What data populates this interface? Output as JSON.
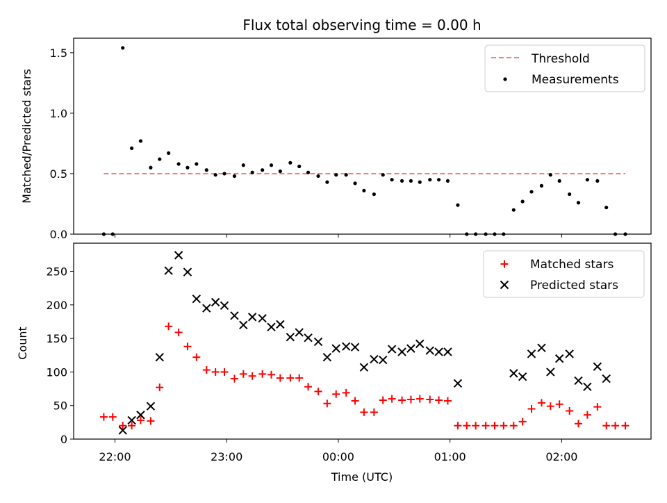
{
  "colors": {
    "threshold": "#f08080",
    "matched": "#ff0000",
    "predicted": "#000000",
    "measurements": "#000000",
    "axis": "#000000"
  },
  "chart_data": [
    {
      "type": "scatter",
      "title": "Flux total observing time = 0.00 h",
      "xlabel": "",
      "ylabel": "Matched/Predicted stars",
      "xlim": [
        21.63,
        26.8
      ],
      "ylim": [
        0,
        1.62
      ],
      "yticks": [
        0,
        0.5,
        1.0,
        1.5
      ],
      "ytick_labels": [
        "0.0",
        "0.5",
        "1.0",
        "1.5"
      ],
      "xticks": [
        22,
        23,
        24,
        25,
        26
      ],
      "legend_position": "top-right",
      "legend": [
        "Threshold",
        "Measurements"
      ],
      "threshold": {
        "name": "Threshold",
        "y": 0.5,
        "x_range": [
          21.9,
          26.57
        ]
      },
      "series": [
        {
          "name": "Measurements",
          "points": [
            [
              21.9,
              0.0
            ],
            [
              21.98,
              0.0
            ],
            [
              22.07,
              1.54
            ],
            [
              22.15,
              0.71
            ],
            [
              22.23,
              0.77
            ],
            [
              22.32,
              0.55
            ],
            [
              22.4,
              0.62
            ],
            [
              22.48,
              0.67
            ],
            [
              22.57,
              0.58
            ],
            [
              22.65,
              0.55
            ],
            [
              22.73,
              0.58
            ],
            [
              22.82,
              0.53
            ],
            [
              22.9,
              0.49
            ],
            [
              22.98,
              0.5
            ],
            [
              23.07,
              0.48
            ],
            [
              23.15,
              0.57
            ],
            [
              23.23,
              0.51
            ],
            [
              23.32,
              0.53
            ],
            [
              23.4,
              0.57
            ],
            [
              23.48,
              0.52
            ],
            [
              23.57,
              0.59
            ],
            [
              23.65,
              0.56
            ],
            [
              23.73,
              0.51
            ],
            [
              23.82,
              0.48
            ],
            [
              23.9,
              0.43
            ],
            [
              23.98,
              0.49
            ],
            [
              24.07,
              0.49
            ],
            [
              24.15,
              0.42
            ],
            [
              24.23,
              0.36
            ],
            [
              24.32,
              0.33
            ],
            [
              24.4,
              0.49
            ],
            [
              24.48,
              0.45
            ],
            [
              24.57,
              0.44
            ],
            [
              24.65,
              0.44
            ],
            [
              24.73,
              0.43
            ],
            [
              24.82,
              0.45
            ],
            [
              24.9,
              0.45
            ],
            [
              24.98,
              0.44
            ],
            [
              25.07,
              0.24
            ],
            [
              25.15,
              0.0
            ],
            [
              25.23,
              0.0
            ],
            [
              25.32,
              0.0
            ],
            [
              25.4,
              0.0
            ],
            [
              25.48,
              0.0
            ],
            [
              25.57,
              0.2
            ],
            [
              25.65,
              0.27
            ],
            [
              25.73,
              0.35
            ],
            [
              25.82,
              0.4
            ],
            [
              25.9,
              0.49
            ],
            [
              25.98,
              0.44
            ],
            [
              26.07,
              0.33
            ],
            [
              26.15,
              0.26
            ],
            [
              26.23,
              0.45
            ],
            [
              26.32,
              0.44
            ],
            [
              26.4,
              0.22
            ],
            [
              26.48,
              0.0
            ],
            [
              26.57,
              0.0
            ]
          ]
        }
      ]
    },
    {
      "type": "scatter",
      "title": "",
      "xlabel": "Time (UTC)",
      "ylabel": "Count",
      "xlim": [
        21.63,
        26.8
      ],
      "ylim": [
        0,
        292
      ],
      "yticks": [
        0,
        50,
        100,
        150,
        200,
        250
      ],
      "ytick_labels": [
        "0",
        "50",
        "100",
        "150",
        "200",
        "250"
      ],
      "xticks": [
        22,
        23,
        24,
        25,
        26
      ],
      "xtick_labels": [
        "22:00",
        "23:00",
        "00:00",
        "01:00",
        "02:00"
      ],
      "legend_position": "top-right",
      "legend": [
        "Matched stars",
        "Predicted stars"
      ],
      "series": [
        {
          "name": "Matched stars",
          "marker": "plus",
          "points": [
            [
              21.9,
              33
            ],
            [
              21.98,
              33
            ],
            [
              22.07,
              20
            ],
            [
              22.15,
              20
            ],
            [
              22.23,
              28
            ],
            [
              22.32,
              27
            ],
            [
              22.4,
              77
            ],
            [
              22.48,
              168
            ],
            [
              22.57,
              159
            ],
            [
              22.65,
              138
            ],
            [
              22.73,
              122
            ],
            [
              22.82,
              103
            ],
            [
              22.9,
              100
            ],
            [
              22.98,
              100
            ],
            [
              23.07,
              90
            ],
            [
              23.15,
              97
            ],
            [
              23.23,
              94
            ],
            [
              23.32,
              97
            ],
            [
              23.4,
              96
            ],
            [
              23.48,
              91
            ],
            [
              23.57,
              91
            ],
            [
              23.65,
              91
            ],
            [
              23.73,
              78
            ],
            [
              23.82,
              71
            ],
            [
              23.9,
              53
            ],
            [
              23.98,
              67
            ],
            [
              24.07,
              69
            ],
            [
              24.15,
              57
            ],
            [
              24.23,
              40
            ],
            [
              24.32,
              40
            ],
            [
              24.4,
              58
            ],
            [
              24.48,
              60
            ],
            [
              24.57,
              58
            ],
            [
              24.65,
              59
            ],
            [
              24.73,
              60
            ],
            [
              24.82,
              59
            ],
            [
              24.9,
              58
            ],
            [
              24.98,
              57
            ],
            [
              25.07,
              20
            ],
            [
              25.15,
              20
            ],
            [
              25.23,
              20
            ],
            [
              25.32,
              20
            ],
            [
              25.4,
              20
            ],
            [
              25.48,
              20
            ],
            [
              25.57,
              20
            ],
            [
              25.65,
              26
            ],
            [
              25.73,
              45
            ],
            [
              25.82,
              54
            ],
            [
              25.9,
              49
            ],
            [
              25.98,
              52
            ],
            [
              26.07,
              42
            ],
            [
              26.15,
              23
            ],
            [
              26.23,
              36
            ],
            [
              26.32,
              48
            ],
            [
              26.4,
              20
            ],
            [
              26.48,
              20
            ],
            [
              26.57,
              20
            ]
          ]
        },
        {
          "name": "Predicted stars",
          "marker": "x",
          "points": [
            [
              22.07,
              13
            ],
            [
              22.15,
              28
            ],
            [
              22.23,
              36
            ],
            [
              22.32,
              49
            ],
            [
              22.4,
              122
            ],
            [
              22.48,
              251
            ],
            [
              22.57,
              274
            ],
            [
              22.65,
              249
            ],
            [
              22.73,
              209
            ],
            [
              22.82,
              195
            ],
            [
              22.9,
              204
            ],
            [
              22.98,
              199
            ],
            [
              23.07,
              184
            ],
            [
              23.15,
              170
            ],
            [
              23.23,
              182
            ],
            [
              23.32,
              180
            ],
            [
              23.4,
              167
            ],
            [
              23.48,
              171
            ],
            [
              23.57,
              152
            ],
            [
              23.65,
              159
            ],
            [
              23.73,
              151
            ],
            [
              23.82,
              145
            ],
            [
              23.9,
              122
            ],
            [
              23.98,
              135
            ],
            [
              24.07,
              138
            ],
            [
              24.15,
              137
            ],
            [
              24.23,
              107
            ],
            [
              24.32,
              119
            ],
            [
              24.4,
              118
            ],
            [
              24.48,
              134
            ],
            [
              24.57,
              130
            ],
            [
              24.65,
              135
            ],
            [
              24.73,
              142
            ],
            [
              24.82,
              132
            ],
            [
              24.9,
              130
            ],
            [
              24.98,
              130
            ],
            [
              25.07,
              83
            ],
            [
              25.57,
              98
            ],
            [
              25.65,
              93
            ],
            [
              25.73,
              127
            ],
            [
              25.82,
              136
            ],
            [
              25.9,
              100
            ],
            [
              25.98,
              120
            ],
            [
              26.07,
              127
            ],
            [
              26.15,
              87
            ],
            [
              26.23,
              78
            ],
            [
              26.32,
              108
            ],
            [
              26.4,
              90
            ]
          ]
        }
      ]
    }
  ]
}
